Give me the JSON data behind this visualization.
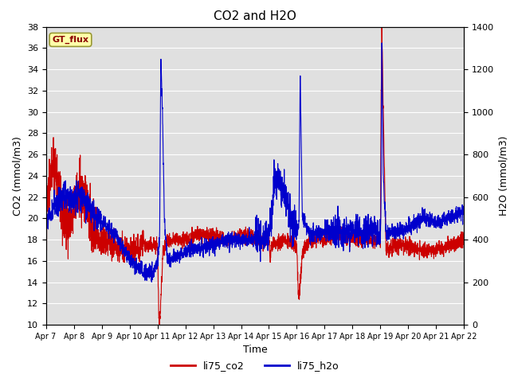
{
  "title": "CO2 and H2O",
  "xlabel": "Time",
  "ylabel_left": "CO2 (mmol/m3)",
  "ylabel_right": "H2O (mmol/m3)",
  "ylim_left": [
    10,
    38
  ],
  "ylim_right": [
    0,
    1400
  ],
  "yticks_left": [
    10,
    12,
    14,
    16,
    18,
    20,
    22,
    24,
    26,
    28,
    30,
    32,
    34,
    36,
    38
  ],
  "yticks_right": [
    0,
    200,
    400,
    600,
    800,
    1000,
    1200,
    1400
  ],
  "xtick_labels": [
    "Apr 7",
    "Apr 8",
    "Apr 9",
    "Apr 10",
    "Apr 11",
    "Apr 12",
    "Apr 13",
    "Apr 14",
    "Apr 15",
    "Apr 16",
    "Apr 17",
    "Apr 18",
    "Apr 19",
    "Apr 20",
    "Apr 21",
    "Apr 22"
  ],
  "color_co2": "#cc0000",
  "color_h2o": "#0000cc",
  "legend_label_co2": "li75_co2",
  "legend_label_h2o": "li75_h2o",
  "box_label": "GT_flux",
  "box_bg": "#ffffaa",
  "box_border": "#999933",
  "bg_color": "#e0e0e0",
  "linewidth": 0.8
}
